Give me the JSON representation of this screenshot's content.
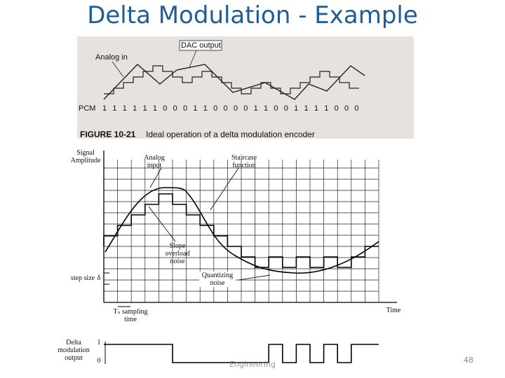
{
  "title": "Delta Modulation - Example",
  "figure_top": {
    "dac_label": "DAC output",
    "analog_label": "Analog in",
    "pcm_label": "PCM",
    "pcm_bits": "1 1 1 1 1 1 0 0 0 1 1 0 0 0 0 1 1 0 0 1 1 1 1 0 0 0",
    "caption_number": "FIGURE 10-21",
    "caption_text": "Ideal operation of a delta modulation encoder"
  },
  "figure_bottom": {
    "y_axis_label": "Signal Amplitude",
    "analog_label": "Analog input",
    "staircase_label": "Staircase function",
    "slope_label": "Slope overload noise",
    "quantizing_label": "Quantizing noise",
    "step_label": "step size",
    "delta_symbol": "δ",
    "ts_label": "Tₛ sampling time",
    "time_label": "Time",
    "output_label": "Delta modulation output",
    "high_level": "1",
    "low_level": "0"
  },
  "footer": {
    "text": "Engineering",
    "page": "48"
  }
}
